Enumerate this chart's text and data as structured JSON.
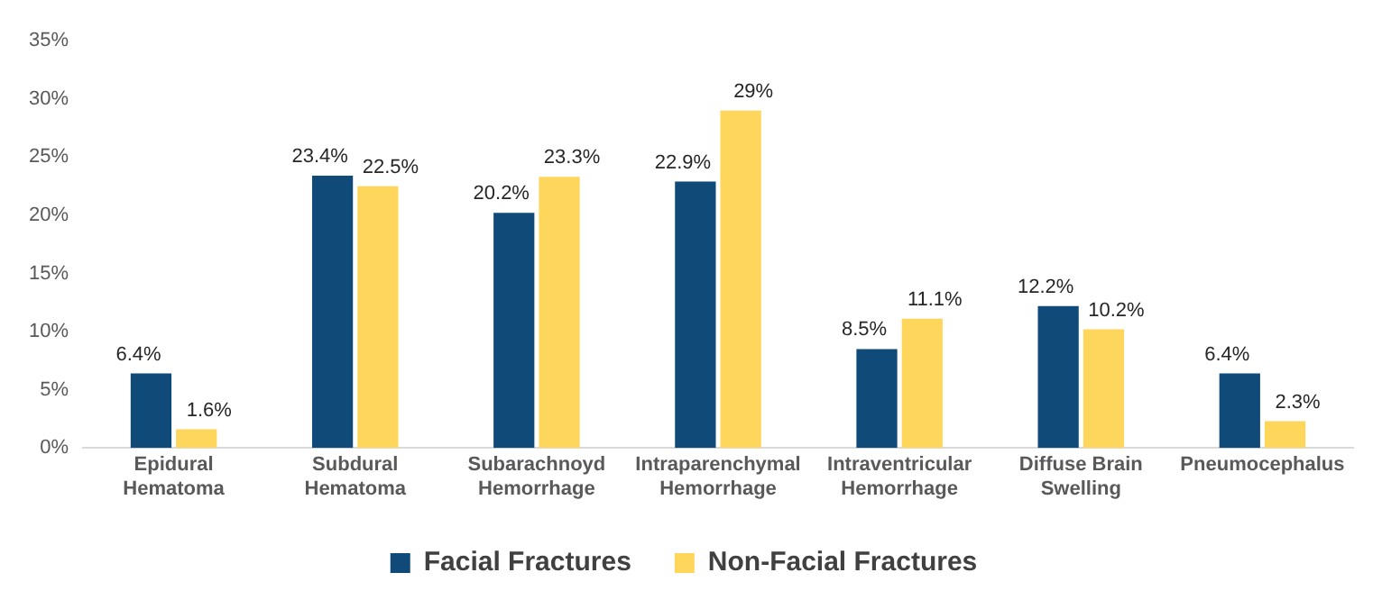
{
  "chart_data": {
    "type": "bar",
    "categories": [
      "Epidural Hematoma",
      "Subdural Hematoma",
      "Subarachnoyd Hemorrhage",
      "Intraparenchymal Hemorrhage",
      "Intraventricular Hemorrhage",
      "Diffuse Brain Swelling",
      "Pneumocephalus"
    ],
    "series": [
      {
        "name": "Facial Fractures",
        "color": "#0f4a78",
        "values": [
          6.4,
          23.4,
          20.2,
          22.9,
          8.5,
          12.2,
          6.4
        ],
        "value_labels": [
          "6.4%",
          "23.4%",
          "20.2%",
          "22.9%",
          "8.5%",
          "12.2%",
          "6.4%"
        ]
      },
      {
        "name": "Non-Facial Fractures",
        "color": "#ffd65c",
        "values": [
          1.6,
          22.5,
          23.3,
          29,
          11.1,
          10.2,
          2.3
        ],
        "value_labels": [
          "1.6%",
          "22.5%",
          "23.3%",
          "29%",
          "11.1%",
          "10.2%",
          "2.3%"
        ]
      }
    ],
    "ylim": [
      0,
      35
    ],
    "yticks": [
      {
        "value": 0,
        "label": "0%"
      },
      {
        "value": 5,
        "label": "5%"
      },
      {
        "value": 10,
        "label": "10%"
      },
      {
        "value": 15,
        "label": "15%"
      },
      {
        "value": 20,
        "label": "20%"
      },
      {
        "value": 25,
        "label": "25%"
      },
      {
        "value": 30,
        "label": "30%"
      },
      {
        "value": 35,
        "label": "35%"
      }
    ],
    "grid": false,
    "legend": "bottom"
  }
}
